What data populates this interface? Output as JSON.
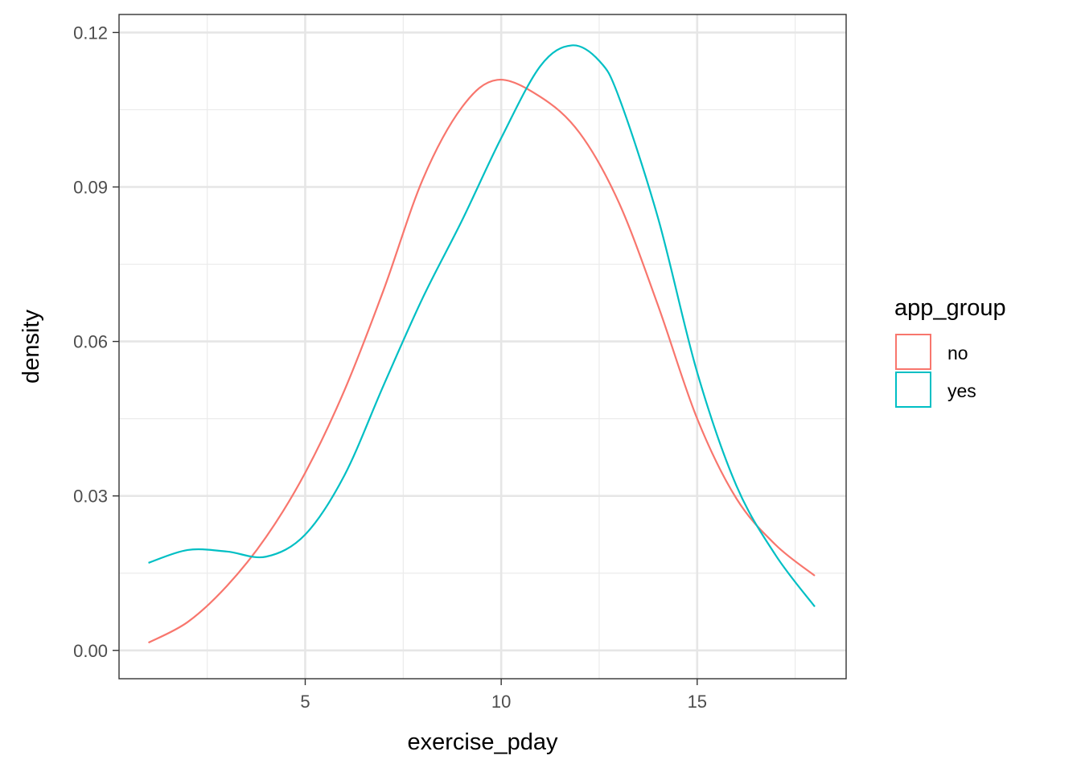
{
  "chart_data": {
    "type": "line",
    "xlabel": "exercise_pday",
    "ylabel": "density",
    "xlim": [
      0.25,
      18.8
    ],
    "ylim": [
      -0.0055,
      0.1235
    ],
    "x_ticks": [
      5,
      10,
      15
    ],
    "x_tick_labels": [
      "5",
      "10",
      "15"
    ],
    "y_ticks": [
      0,
      0.03,
      0.06,
      0.09,
      0.12
    ],
    "y_tick_labels": [
      "0.00",
      "0.03",
      "0.06",
      "0.09",
      "0.12"
    ],
    "grid": true,
    "legend": {
      "title": "app_group",
      "position": "right"
    },
    "series": [
      {
        "name": "no",
        "color": "#F8766D",
        "x": [
          1.0,
          2.0,
          3.0,
          4.0,
          5.0,
          6.0,
          7.0,
          8.0,
          9.0,
          9.9,
          11.0,
          12.0,
          13.0,
          14.0,
          15.0,
          16.0,
          17.0,
          18.0
        ],
        "y": [
          0.0015,
          0.0055,
          0.0125,
          0.022,
          0.0345,
          0.0505,
          0.07,
          0.0915,
          0.1055,
          0.1108,
          0.1075,
          0.1005,
          0.087,
          0.067,
          0.045,
          0.0295,
          0.0205,
          0.0145
        ]
      },
      {
        "name": "yes",
        "color": "#00BFC4",
        "x": [
          1.0,
          2.0,
          3.0,
          4.0,
          5.0,
          6.0,
          7.0,
          8.0,
          9.0,
          10.0,
          11.0,
          11.8,
          12.5,
          13.0,
          14.0,
          15.0,
          16.0,
          17.0,
          18.0
        ],
        "y": [
          0.017,
          0.0195,
          0.0192,
          0.0182,
          0.0225,
          0.034,
          0.0515,
          0.0685,
          0.0835,
          0.0995,
          0.1135,
          0.1175,
          0.1145,
          0.1075,
          0.084,
          0.054,
          0.032,
          0.0185,
          0.0085
        ]
      }
    ]
  }
}
